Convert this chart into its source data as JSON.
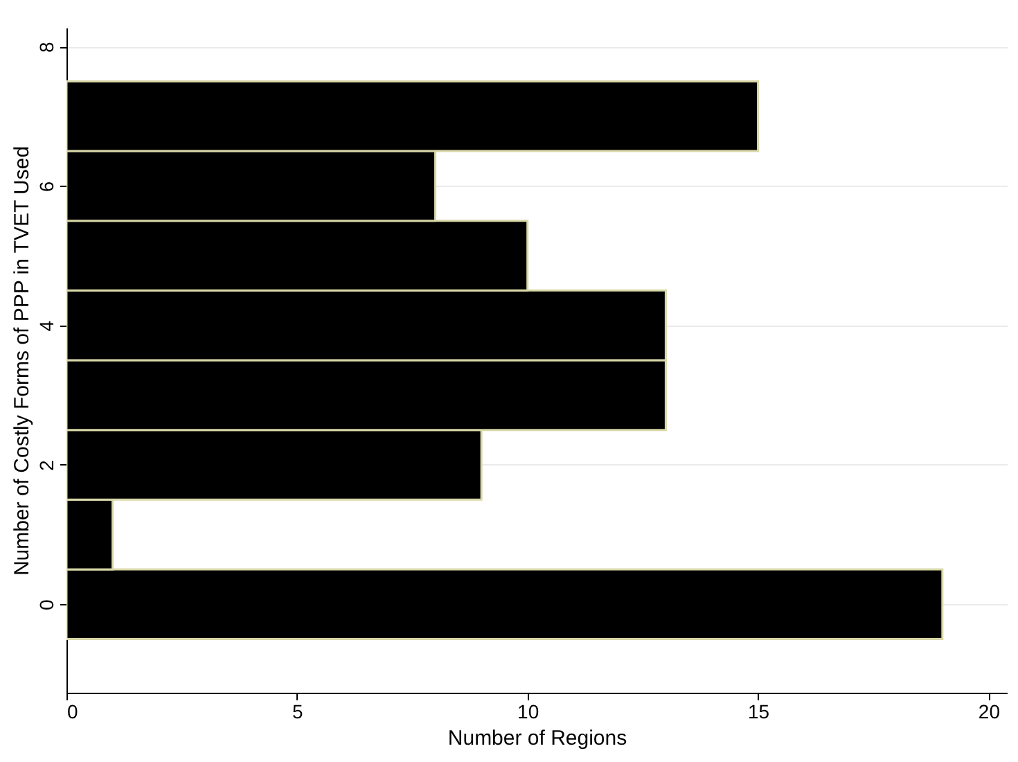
{
  "chart_data": {
    "type": "histogram",
    "orientation": "horizontal",
    "xlabel": "Number of Regions",
    "ylabel": "Number of Costly Forms of PPP in TVET Used",
    "bins": [
      -0.5,
      0.5,
      1.5,
      2.5,
      3.5,
      4.5,
      5.5,
      6.5,
      7.5
    ],
    "values": [
      19,
      1,
      9,
      13,
      13,
      10,
      8,
      15
    ],
    "color": "#000000",
    "xlim": [
      0,
      20.4
    ],
    "xticks": [
      0,
      5,
      10,
      15,
      20
    ],
    "ylim": [
      -1.27,
      8.27
    ],
    "yticks": [
      0,
      2,
      4,
      6,
      8
    ],
    "grid": "y"
  }
}
